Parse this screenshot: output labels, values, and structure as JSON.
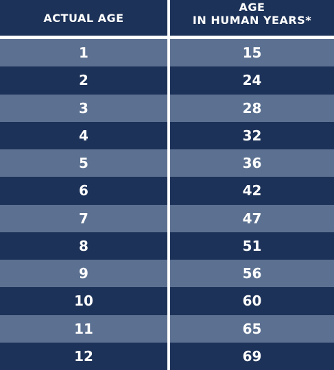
{
  "header": {
    "col1": "ACTUAL AGE",
    "col2_line1": "AGE",
    "col2_line2": "IN HUMAN YEARS*"
  },
  "rows": [
    {
      "actual": "1",
      "human": "15"
    },
    {
      "actual": "2",
      "human": "24"
    },
    {
      "actual": "3",
      "human": "28"
    },
    {
      "actual": "4",
      "human": "32"
    },
    {
      "actual": "5",
      "human": "36"
    },
    {
      "actual": "6",
      "human": "42"
    },
    {
      "actual": "7",
      "human": "47"
    },
    {
      "actual": "8",
      "human": "51"
    },
    {
      "actual": "9",
      "human": "56"
    },
    {
      "actual": "10",
      "human": "60"
    },
    {
      "actual": "11",
      "human": "65"
    },
    {
      "actual": "12",
      "human": "69"
    }
  ],
  "colors": {
    "dark_row": "#1d3258",
    "light_row": "#5c7191",
    "header": "#1d3258",
    "text": "#ffffff"
  }
}
